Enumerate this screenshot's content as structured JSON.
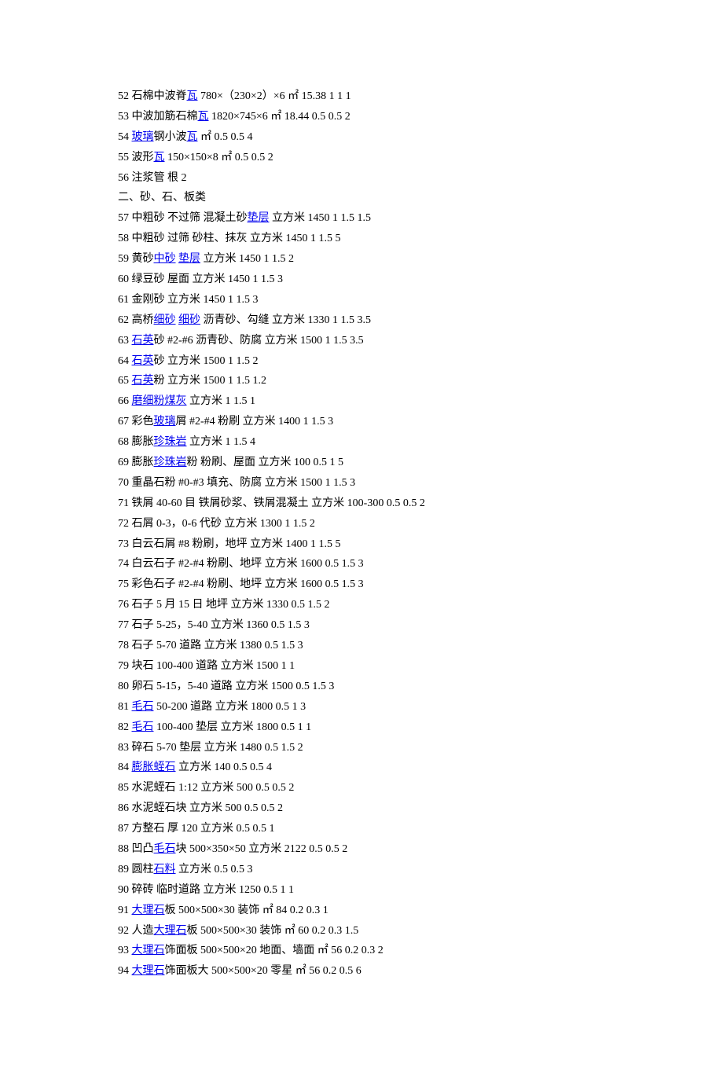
{
  "rows": [
    {
      "prefix": "52 石棉中波脊",
      "link1": "瓦",
      "middle": " 780×（230×2）×6 ㎡ 15.38 1 1 1"
    },
    {
      "prefix": "53 中波加筋石棉",
      "link1": "瓦",
      "middle": " 1820×745×6 ㎡ 18.44 0.5 0.5 2"
    },
    {
      "prefix": "54 ",
      "link1": "玻璃",
      "middle": "钢小波",
      "link2": "瓦",
      "suffix": " ㎡ 0.5 0.5 4"
    },
    {
      "prefix": "55 波形",
      "link1": "瓦",
      "middle": " 150×150×8 ㎡ 0.5 0.5 2"
    },
    {
      "prefix": "56 注浆管 根 2"
    },
    {
      "prefix": "二、砂、石、板类"
    },
    {
      "prefix": "57 中粗砂 不过筛 混凝土砂",
      "link1": "垫层",
      "middle": " 立方米 1450 1 1.5 1.5"
    },
    {
      "prefix": "58 中粗砂 过筛 砂柱、抹灰 立方米 1450 1 1.5 5"
    },
    {
      "prefix": "59 黄砂",
      "link1": "中砂",
      "middle": " ",
      "link2": "垫层",
      "suffix": " 立方米 1450 1 1.5 2"
    },
    {
      "prefix": "60 绿豆砂 屋面 立方米 1450 1 1.5 3"
    },
    {
      "prefix": "61 金刚砂 立方米 1450 1 1.5 3"
    },
    {
      "prefix": "62 高桥",
      "link1": "细砂",
      "middle": " ",
      "link2": "细砂",
      "suffix": " 沥青砂、勾缝 立方米 1330 1 1.5 3.5"
    },
    {
      "prefix": "63 ",
      "link1": "石英",
      "middle": "砂 #2-#6 沥青砂、防腐 立方米 1500 1 1.5 3.5"
    },
    {
      "prefix": "64 ",
      "link1": "石英",
      "middle": "砂 立方米 1500 1 1.5 2"
    },
    {
      "prefix": "65 ",
      "link1": "石英",
      "middle": "粉 立方米 1500 1 1.5 1.2"
    },
    {
      "prefix": "66 ",
      "link1": "磨细粉煤灰",
      "middle": " 立方米 1 1.5 1"
    },
    {
      "prefix": "67 彩色",
      "link1": "玻璃",
      "middle": "屑 #2-#4 粉刷 立方米 1400 1 1.5 3"
    },
    {
      "prefix": "68 膨胀",
      "link1": "珍珠岩",
      "middle": " 立方米 1 1.5 4"
    },
    {
      "prefix": "69 膨胀",
      "link1": "珍珠岩",
      "middle": "粉 粉刷、屋面 立方米 100 0.5 1 5"
    },
    {
      "prefix": "70 重晶石粉 #0-#3 填充、防腐 立方米 1500 1 1.5 3"
    },
    {
      "prefix": "71 铁屑 40-60 目 铁屑砂浆、铁屑混凝土 立方米 100-300 0.5 0.5 2"
    },
    {
      "prefix": "72 石屑 0-3，0-6 代砂 立方米 1300 1 1.5 2"
    },
    {
      "prefix": "73 白云石屑 #8 粉刷，地坪 立方米 1400 1 1.5 5"
    },
    {
      "prefix": "74 白云石子 #2-#4 粉刷、地坪 立方米 1600 0.5 1.5 3"
    },
    {
      "prefix": "75 彩色石子 #2-#4 粉刷、地坪 立方米 1600 0.5 1.5 3"
    },
    {
      "prefix": "76 石子 5 月 15 日 地坪 立方米 1330 0.5 1.5 2"
    },
    {
      "prefix": "77 石子 5-25，5-40 立方米 1360 0.5 1.5 3"
    },
    {
      "prefix": "78 石子 5-70 道路 立方米 1380 0.5 1.5 3"
    },
    {
      "prefix": "79 块石 100-400 道路 立方米 1500 1 1"
    },
    {
      "prefix": "80 卵石 5-15，5-40 道路 立方米 1500 0.5 1.5 3"
    },
    {
      "prefix": "81 ",
      "link1": "毛石",
      "middle": " 50-200 道路 立方米 1800 0.5 1 3"
    },
    {
      "prefix": "82 ",
      "link1": "毛石",
      "middle": " 100-400 垫层 立方米 1800 0.5 1 1"
    },
    {
      "prefix": "83 碎石 5-70 垫层 立方米 1480 0.5 1.5 2"
    },
    {
      "prefix": "84 ",
      "link1": "膨胀蛭石",
      "middle": " 立方米 140 0.5 0.5 4"
    },
    {
      "prefix": "85 水泥蛭石 1:12 立方米 500 0.5 0.5 2"
    },
    {
      "prefix": "86 水泥蛭石块 立方米 500 0.5 0.5 2"
    },
    {
      "prefix": "87 方整石 厚 120 立方米 0.5 0.5 1"
    },
    {
      "prefix": "88 凹凸",
      "link1": "毛石",
      "middle": "块 500×350×50 立方米 2122 0.5 0.5 2"
    },
    {
      "prefix": "89 圆柱",
      "link1": "石料",
      "middle": " 立方米 0.5 0.5 3"
    },
    {
      "prefix": "90 碎砖 临时道路 立方米 1250 0.5 1 1"
    },
    {
      "prefix": "91 ",
      "link1": "大理石",
      "middle": "板 500×500×30 装饰 ㎡ 84 0.2 0.3 1"
    },
    {
      "prefix": "92 人造",
      "link1": "大理石",
      "middle": "板 500×500×30 装饰 ㎡ 60 0.2 0.3 1.5"
    },
    {
      "prefix": "93 ",
      "link1": "大理石",
      "middle": "饰面板 500×500×20 地面、墙面 ㎡ 56 0.2 0.3 2"
    },
    {
      "prefix": "94 ",
      "link1": "大理石",
      "middle": "饰面板大 500×500×20 零星 ㎡ 56 0.2 0.5 6"
    }
  ]
}
